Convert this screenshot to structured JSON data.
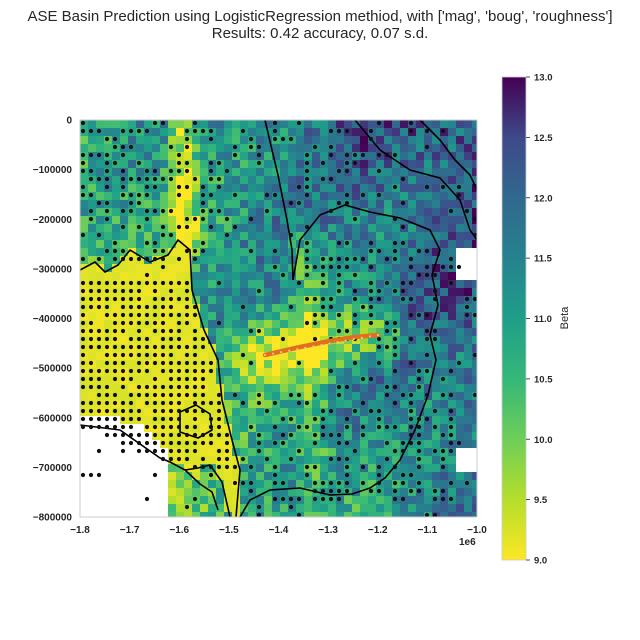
{
  "chart_data": {
    "type": "heatmap",
    "title": "ASE Basin Prediction using LogisticRegression methiod, with ['mag', 'boug', 'roughness']\nResults: 0.42 accuracy, 0.07 s.d.",
    "xlabel": "",
    "ylabel": "",
    "x_offset_label": "1e6",
    "xlim": [
      -1.8,
      -1.0
    ],
    "ylim": [
      -800000,
      0
    ],
    "x_ticks": [
      "−1.8",
      "−1.7",
      "−1.6",
      "−1.5",
      "−1.4",
      "−1.3",
      "−1.2",
      "−1.1",
      "−1.0"
    ],
    "y_ticks": [
      "0",
      "−100000",
      "−200000",
      "−300000",
      "−400000",
      "−500000",
      "−600000",
      "−700000",
      "−800000"
    ],
    "colorbar": {
      "label": "Beta",
      "colormap": "viridis_r",
      "range": [
        9.0,
        13.0
      ],
      "ticks": [
        "9.0",
        "9.5",
        "10.0",
        "10.5",
        "11.0",
        "11.5",
        "12.0",
        "12.5",
        "13.0"
      ]
    },
    "grid": true,
    "overlays": [
      "black basin outlines",
      "black dot markers",
      "orange profile line"
    ]
  }
}
